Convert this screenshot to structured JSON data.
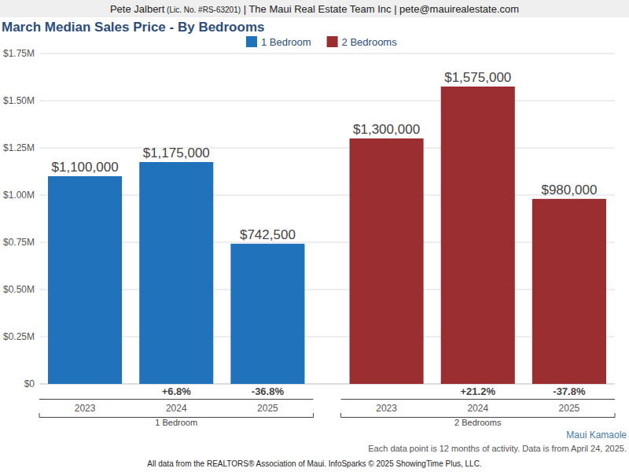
{
  "header": [
    "Pete Jalbert",
    "(Lic. No. #RS-63201)",
    "| The Maui Real Estate Team Inc | pete@mauirealestate.com"
  ],
  "chart_data": {
    "type": "bar",
    "title": "March Median Sales Price - By Bedrooms",
    "categories": [
      "2023",
      "2024",
      "2025"
    ],
    "series": [
      {
        "name": "1 Bedroom",
        "color": "#2072ba",
        "values": [
          1100000,
          1175000,
          742500
        ],
        "value_labels": [
          "$1,100,000",
          "$1,175,000",
          "$742,500"
        ],
        "change_labels": [
          null,
          "+6.8%",
          "-36.8%"
        ]
      },
      {
        "name": "2 Bedrooms",
        "color": "#992d30",
        "values": [
          1300000,
          1575000,
          980000
        ],
        "value_labels": [
          "$1,300,000",
          "$1,575,000",
          "$980,000"
        ],
        "change_labels": [
          null,
          "+21.2%",
          "-37.8%"
        ]
      }
    ],
    "ylim": [
      0,
      1750000
    ],
    "yticks": [
      {
        "value": 0,
        "label": "$0"
      },
      {
        "value": 250000,
        "label": "$0.25M"
      },
      {
        "value": 500000,
        "label": "$0.50M"
      },
      {
        "value": 750000,
        "label": "$0.75M"
      },
      {
        "value": 1000000,
        "label": "$1.00M"
      },
      {
        "value": 1250000,
        "label": "$1.25M"
      },
      {
        "value": 1500000,
        "label": "$1.50M"
      },
      {
        "value": 1750000,
        "label": "$1.75M"
      }
    ],
    "grid": true,
    "legend": "top",
    "data_labels": true
  },
  "area": "Maui Kamaole",
  "note": "Each data point is 12 months of activity. Data is from April 24, 2025.",
  "footer": "All data from the REALTORS® Association of Maui. InfoSparks © 2025 ShowingTime Plus, LLC."
}
